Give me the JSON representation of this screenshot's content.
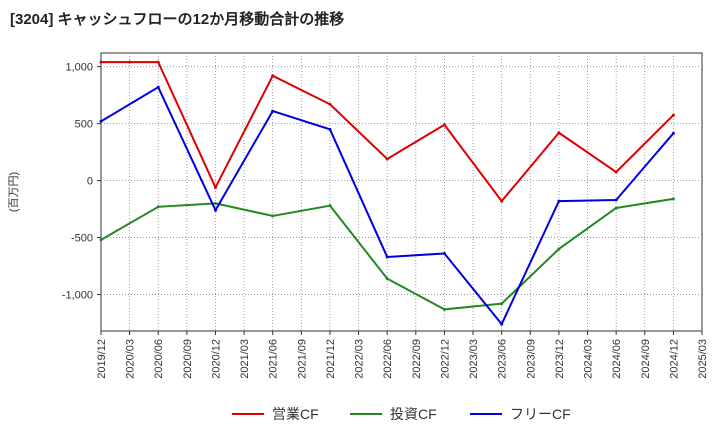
{
  "chart_data": {
    "type": "line",
    "title": "[3204]  キャッシュフローの12か月移動合計の推移",
    "ylabel": "(百万円)",
    "xlabel": "",
    "ylim": [
      -1320,
      1120
    ],
    "yticks": [
      1000,
      500,
      0,
      -500,
      -1000
    ],
    "ytick_labels": [
      "1,000",
      "500",
      "0",
      "-500",
      "-1,000"
    ],
    "categories": [
      "2019/12",
      "2020/03",
      "2020/06",
      "2020/09",
      "2020/12",
      "2021/03",
      "2021/06",
      "2021/09",
      "2021/12",
      "2022/03",
      "2022/06",
      "2022/09",
      "2022/12",
      "2023/03",
      "2023/06",
      "2023/09",
      "2023/12",
      "2024/03",
      "2024/06",
      "2024/09",
      "2024/12",
      "2025/03"
    ],
    "grid": true,
    "legend_position": "bottom",
    "series": [
      {
        "name": "営業CF",
        "color": "#dd0000",
        "values": [
          1040,
          1040,
          1040,
          null,
          -60,
          null,
          920,
          null,
          670,
          null,
          190,
          null,
          490,
          null,
          -180,
          null,
          420,
          null,
          75,
          null,
          575,
          null
        ]
      },
      {
        "name": "投資CF",
        "color": "#228822",
        "values": [
          -520,
          null,
          -230,
          null,
          -200,
          null,
          -310,
          null,
          -220,
          null,
          -860,
          null,
          -1130,
          null,
          -1080,
          null,
          -600,
          null,
          -240,
          null,
          -160,
          null
        ]
      },
      {
        "name": "フリーCF",
        "color": "#0000dd",
        "values": [
          520,
          null,
          820,
          null,
          -260,
          null,
          610,
          null,
          450,
          null,
          -670,
          null,
          -640,
          null,
          -1260,
          null,
          -180,
          null,
          -170,
          null,
          415,
          null
        ]
      }
    ]
  }
}
